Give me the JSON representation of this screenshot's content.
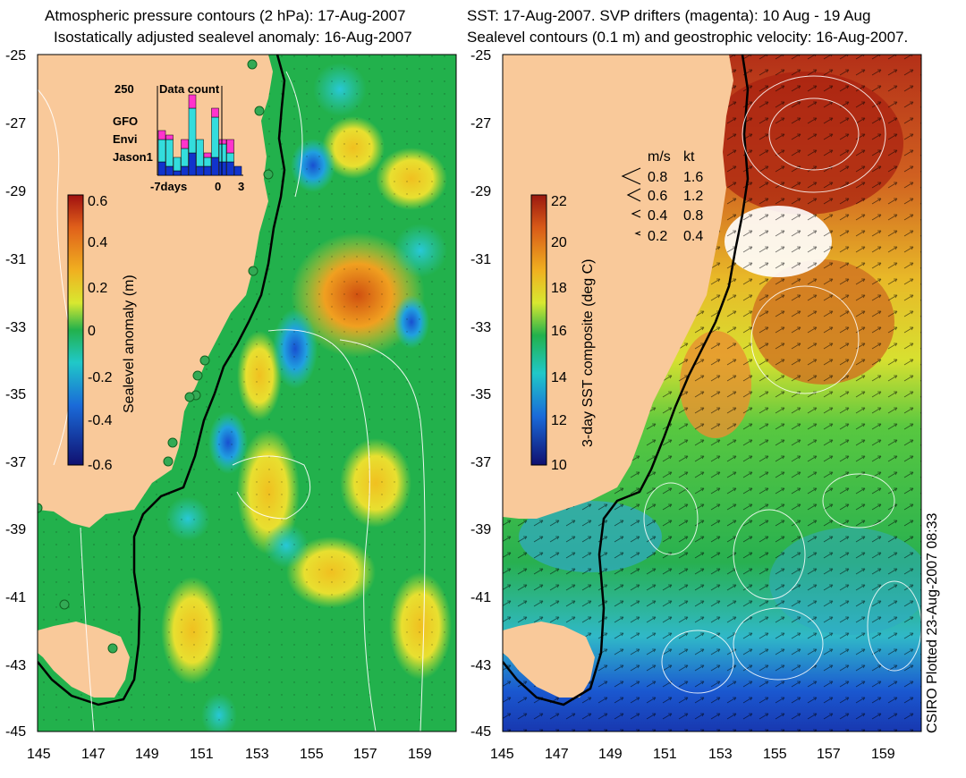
{
  "left": {
    "title1": "Atmospheric pressure contours (2 hPa): 17-Aug-2007",
    "title2": "Isostatically adjusted sealevel anomaly: 16-Aug-2007",
    "colorbar": {
      "label": "Sealevel anomaly (m)",
      "ticks": [
        "0.6",
        "0.4",
        "0.2",
        "0",
        "-0.2",
        "-0.4",
        "-0.6"
      ]
    },
    "data_count": {
      "max_label": "250",
      "title": "Data count",
      "legend": [
        {
          "label": "GFO",
          "color": "#ff33cc"
        },
        {
          "label": "Envi",
          "color": "#33dddd"
        },
        {
          "label": "Jason1",
          "color": "#1133cc"
        }
      ],
      "x_ticks": [
        "-7days",
        "0",
        "3"
      ],
      "bars": [
        {
          "gfo": 0.1,
          "envi": 0.25,
          "jason": 0.15
        },
        {
          "gfo": 0.05,
          "envi": 0.3,
          "jason": 0.1
        },
        {
          "gfo": 0.0,
          "envi": 0.15,
          "jason": 0.05
        },
        {
          "gfo": 0.1,
          "envi": 0.2,
          "jason": 0.1
        },
        {
          "gfo": 0.15,
          "envi": 0.5,
          "jason": 0.25
        },
        {
          "gfo": 0.0,
          "envi": 0.3,
          "jason": 0.1
        },
        {
          "gfo": 0.05,
          "envi": 0.1,
          "jason": 0.1
        },
        {
          "gfo": 0.1,
          "envi": 0.45,
          "jason": 0.2
        },
        {
          "gfo": 0.05,
          "envi": 0.2,
          "jason": 0.15
        },
        {
          "gfo": 0.15,
          "envi": 0.1,
          "jason": 0.15
        },
        {
          "gfo": 0.0,
          "envi": 0.0,
          "jason": 0.1
        }
      ]
    }
  },
  "right": {
    "title1": "SST: 17-Aug-2007. SVP drifters (magenta): 10 Aug - 19 Aug",
    "title2": "Sealevel contours (0.1 m) and geostrophic velocity: 16-Aug-2007.",
    "colorbar": {
      "label": "3-day SST composite (deg C)",
      "ticks": [
        "22",
        "20",
        "18",
        "16",
        "14",
        "12",
        "10"
      ]
    },
    "velocity_legend": {
      "header_ms": "m/s",
      "header_kt": "kt",
      "rows": [
        {
          "ms": "0.8",
          "kt": "1.6"
        },
        {
          "ms": "0.6",
          "kt": "1.2"
        },
        {
          "ms": "0.4",
          "kt": "0.8"
        },
        {
          "ms": "0.2",
          "kt": "0.4"
        }
      ]
    }
  },
  "axes": {
    "y_ticks": [
      "-25",
      "-27",
      "-29",
      "-31",
      "-33",
      "-35",
      "-37",
      "-39",
      "-41",
      "-43",
      "-45"
    ],
    "x_ticks": [
      "145",
      "147",
      "149",
      "151",
      "153",
      "155",
      "157",
      "159"
    ]
  },
  "credit": "CSIRO Plotted 23-Aug-2007 08:33",
  "colors": {
    "land": "#f9c99a",
    "ocean_green": "#22b14c"
  }
}
